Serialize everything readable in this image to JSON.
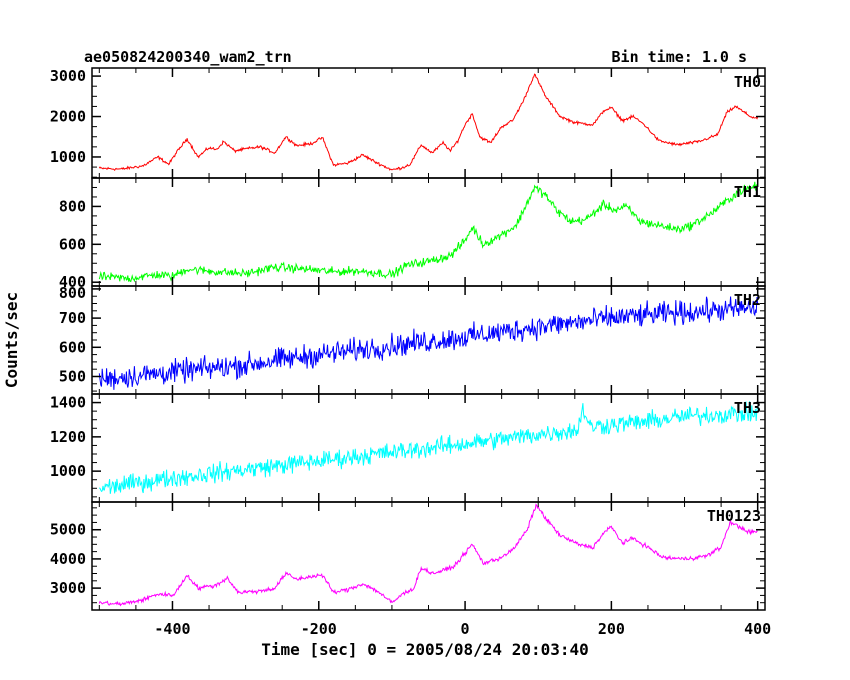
{
  "header": {
    "title": "ae050824200340_wam2_trn",
    "bin_time": "Bin time: 1.0 s"
  },
  "xlabel": "Time [sec] 0 = 2005/08/24 20:03:40",
  "ylabel": "Counts/sec",
  "chart_data": {
    "type": "line",
    "title": "ae050824200340_wam2_trn",
    "xlabel": "Time [sec] 0 = 2005/08/24 20:03:40",
    "ylabel": "Counts/sec",
    "xlim": [
      -510,
      410
    ],
    "x_ticks": [
      -400,
      -200,
      0,
      200,
      400
    ],
    "grid": false,
    "panels": [
      {
        "name": "TH0",
        "color": "#ff0000",
        "ylim": [
          480,
          3200
        ],
        "y_ticks": [
          1000,
          2000,
          3000
        ],
        "noise": 25,
        "points": [
          [
            -500,
            720
          ],
          [
            -470,
            700
          ],
          [
            -440,
            780
          ],
          [
            -420,
            1000
          ],
          [
            -405,
            820
          ],
          [
            -395,
            1100
          ],
          [
            -380,
            1450
          ],
          [
            -365,
            1000
          ],
          [
            -350,
            1230
          ],
          [
            -340,
            1180
          ],
          [
            -330,
            1380
          ],
          [
            -315,
            1150
          ],
          [
            -300,
            1200
          ],
          [
            -280,
            1250
          ],
          [
            -260,
            1100
          ],
          [
            -245,
            1500
          ],
          [
            -230,
            1280
          ],
          [
            -210,
            1330
          ],
          [
            -195,
            1480
          ],
          [
            -180,
            800
          ],
          [
            -160,
            850
          ],
          [
            -140,
            1050
          ],
          [
            -120,
            850
          ],
          [
            -100,
            680
          ],
          [
            -85,
            740
          ],
          [
            -75,
            820
          ],
          [
            -60,
            1300
          ],
          [
            -45,
            1100
          ],
          [
            -30,
            1350
          ],
          [
            -20,
            1150
          ],
          [
            -10,
            1400
          ],
          [
            0,
            1800
          ],
          [
            10,
            2070
          ],
          [
            20,
            1500
          ],
          [
            35,
            1350
          ],
          [
            50,
            1750
          ],
          [
            65,
            1900
          ],
          [
            80,
            2400
          ],
          [
            95,
            3050
          ],
          [
            110,
            2500
          ],
          [
            130,
            2000
          ],
          [
            150,
            1850
          ],
          [
            175,
            1800
          ],
          [
            190,
            2150
          ],
          [
            200,
            2220
          ],
          [
            215,
            1900
          ],
          [
            230,
            2000
          ],
          [
            245,
            1800
          ],
          [
            265,
            1400
          ],
          [
            290,
            1300
          ],
          [
            320,
            1380
          ],
          [
            345,
            1550
          ],
          [
            358,
            2100
          ],
          [
            370,
            2250
          ],
          [
            390,
            2000
          ],
          [
            400,
            1950
          ]
        ]
      },
      {
        "name": "TH1",
        "color": "#00ff00",
        "ylim": [
          380,
          950
        ],
        "y_ticks": [
          400,
          600,
          800
        ],
        "noise": 16,
        "points": [
          [
            -500,
            430
          ],
          [
            -460,
            420
          ],
          [
            -420,
            440
          ],
          [
            -400,
            430
          ],
          [
            -380,
            470
          ],
          [
            -340,
            455
          ],
          [
            -300,
            445
          ],
          [
            -260,
            480
          ],
          [
            -220,
            470
          ],
          [
            -180,
            455
          ],
          [
            -150,
            460
          ],
          [
            -120,
            450
          ],
          [
            -100,
            440
          ],
          [
            -80,
            490
          ],
          [
            -50,
            510
          ],
          [
            -20,
            540
          ],
          [
            0,
            620
          ],
          [
            10,
            690
          ],
          [
            25,
            600
          ],
          [
            45,
            640
          ],
          [
            70,
            700
          ],
          [
            85,
            820
          ],
          [
            95,
            900
          ],
          [
            110,
            860
          ],
          [
            125,
            780
          ],
          [
            145,
            720
          ],
          [
            165,
            730
          ],
          [
            190,
            810
          ],
          [
            205,
            780
          ],
          [
            220,
            800
          ],
          [
            240,
            720
          ],
          [
            265,
            700
          ],
          [
            290,
            680
          ],
          [
            310,
            700
          ],
          [
            335,
            760
          ],
          [
            355,
            820
          ],
          [
            375,
            880
          ],
          [
            400,
            910
          ]
        ]
      },
      {
        "name": "TH2",
        "color": "#0000ff",
        "ylim": [
          440,
          810
        ],
        "y_ticks": [
          500,
          600,
          700,
          800
        ],
        "noise": 28,
        "points": [
          [
            -500,
            490
          ],
          [
            -400,
            515
          ],
          [
            -300,
            540
          ],
          [
            -200,
            575
          ],
          [
            -100,
            605
          ],
          [
            0,
            635
          ],
          [
            100,
            670
          ],
          [
            200,
            700
          ],
          [
            300,
            720
          ],
          [
            400,
            735
          ]
        ]
      },
      {
        "name": "TH3",
        "color": "#00ffff",
        "ylim": [
          820,
          1450
        ],
        "y_ticks": [
          1000,
          1200,
          1400
        ],
        "noise": 38,
        "points": [
          [
            -500,
            900
          ],
          [
            -400,
            960
          ],
          [
            -300,
            1010
          ],
          [
            -200,
            1060
          ],
          [
            -100,
            1110
          ],
          [
            0,
            1160
          ],
          [
            100,
            1215
          ],
          [
            155,
            1240
          ],
          [
            160,
            1380
          ],
          [
            170,
            1260
          ],
          [
            250,
            1290
          ],
          [
            300,
            1320
          ],
          [
            400,
            1340
          ]
        ]
      },
      {
        "name": "TH0123",
        "color": "#ff00ff",
        "ylim": [
          2250,
          5950
        ],
        "y_ticks": [
          3000,
          4000,
          5000
        ],
        "noise": 50,
        "points": [
          [
            -500,
            2500
          ],
          [
            -470,
            2450
          ],
          [
            -440,
            2600
          ],
          [
            -420,
            2800
          ],
          [
            -400,
            2750
          ],
          [
            -390,
            3050
          ],
          [
            -380,
            3450
          ],
          [
            -365,
            3000
          ],
          [
            -340,
            3100
          ],
          [
            -325,
            3350
          ],
          [
            -310,
            2850
          ],
          [
            -280,
            2900
          ],
          [
            -260,
            3000
          ],
          [
            -245,
            3500
          ],
          [
            -230,
            3300
          ],
          [
            -210,
            3400
          ],
          [
            -195,
            3450
          ],
          [
            -180,
            2850
          ],
          [
            -160,
            2950
          ],
          [
            -140,
            3150
          ],
          [
            -120,
            2900
          ],
          [
            -100,
            2500
          ],
          [
            -85,
            2800
          ],
          [
            -70,
            3000
          ],
          [
            -60,
            3700
          ],
          [
            -45,
            3500
          ],
          [
            -30,
            3600
          ],
          [
            -15,
            3750
          ],
          [
            0,
            4200
          ],
          [
            10,
            4500
          ],
          [
            25,
            3850
          ],
          [
            45,
            4000
          ],
          [
            65,
            4300
          ],
          [
            85,
            5000
          ],
          [
            97,
            5850
          ],
          [
            110,
            5400
          ],
          [
            130,
            4800
          ],
          [
            155,
            4500
          ],
          [
            175,
            4400
          ],
          [
            190,
            4900
          ],
          [
            200,
            5100
          ],
          [
            215,
            4550
          ],
          [
            230,
            4700
          ],
          [
            250,
            4400
          ],
          [
            270,
            4050
          ],
          [
            300,
            4000
          ],
          [
            330,
            4100
          ],
          [
            350,
            4400
          ],
          [
            362,
            5250
          ],
          [
            375,
            5100
          ],
          [
            390,
            4900
          ],
          [
            400,
            4950
          ]
        ]
      }
    ]
  }
}
